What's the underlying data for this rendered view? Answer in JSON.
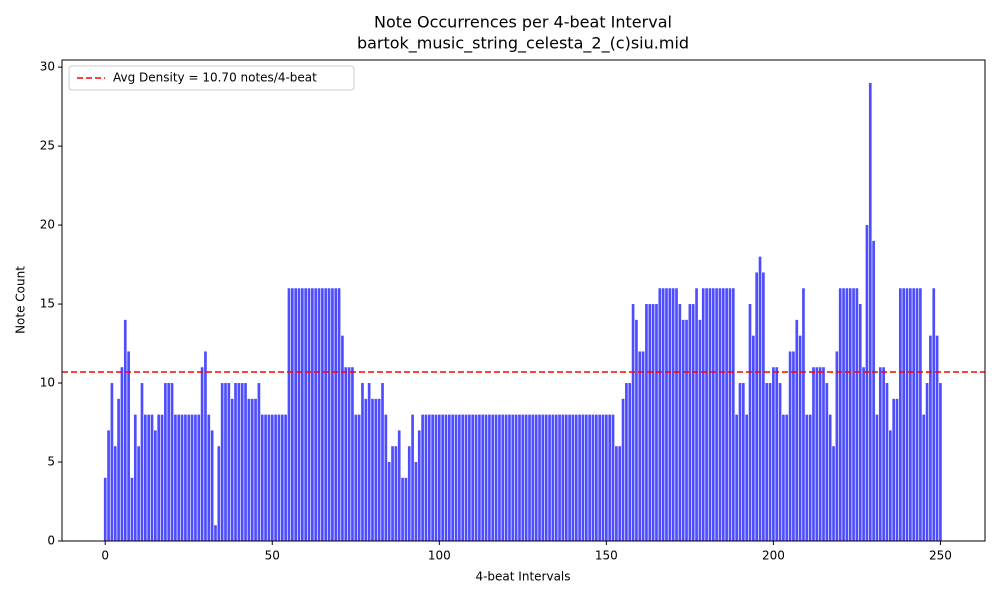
{
  "chart_data": {
    "type": "bar",
    "title": "Note Occurrences per 4-beat Interval",
    "subtitle": "bartok_music_string_celesta_2_(c)siu.mid",
    "x_label": "4-beat Intervals",
    "y_label": "Note Count",
    "color": "#4d4dff",
    "x": [
      0,
      1,
      2,
      3,
      4,
      5,
      6,
      7,
      8,
      9,
      10,
      11,
      12,
      13,
      14,
      15,
      16,
      17,
      18,
      19,
      20,
      21,
      22,
      23,
      24,
      25,
      26,
      27,
      28,
      29,
      30,
      31,
      32,
      33,
      34,
      35,
      36,
      37,
      38,
      39,
      40,
      41,
      42,
      43,
      44,
      45,
      46,
      47,
      48,
      49,
      50,
      51,
      52,
      53,
      54,
      55,
      56,
      57,
      58,
      59,
      60,
      61,
      62,
      63,
      64,
      65,
      66,
      67,
      68,
      69,
      70,
      71,
      72,
      73,
      74,
      75,
      76,
      77,
      78,
      79,
      80,
      81,
      82,
      83,
      84,
      85,
      86,
      87,
      88,
      89,
      90,
      91,
      92,
      93,
      94,
      95,
      96,
      97,
      98,
      99,
      100,
      101,
      102,
      103,
      104,
      105,
      106,
      107,
      108,
      109,
      110,
      111,
      112,
      113,
      114,
      115,
      116,
      117,
      118,
      119,
      120,
      121,
      122,
      123,
      124,
      125,
      126,
      127,
      128,
      129,
      130,
      131,
      132,
      133,
      134,
      135,
      136,
      137,
      138,
      139,
      140,
      141,
      142,
      143,
      144,
      145,
      146,
      147,
      148,
      149,
      150,
      151,
      152,
      153,
      154,
      155,
      156,
      157,
      158,
      159,
      160,
      161,
      162,
      163,
      164,
      165,
      166,
      167,
      168,
      169,
      170,
      171,
      172,
      173,
      174,
      175,
      176,
      177,
      178,
      179,
      180,
      181,
      182,
      183,
      184,
      185,
      186,
      187,
      188,
      189,
      190,
      191,
      192,
      193,
      194,
      195,
      196,
      197,
      198,
      199,
      200,
      201,
      202,
      203,
      204,
      205,
      206,
      207,
      208,
      209,
      210,
      211,
      212,
      213,
      214,
      215,
      216,
      217,
      218,
      219,
      220,
      221,
      222,
      223,
      224,
      225,
      226,
      227,
      228,
      229,
      230,
      231,
      232,
      233,
      234,
      235,
      236,
      237,
      238,
      239,
      240,
      241,
      242,
      243,
      244,
      245,
      246,
      247,
      248,
      249,
      250
    ],
    "values": [
      4,
      7,
      10,
      6,
      9,
      11,
      14,
      12,
      4,
      8,
      6,
      10,
      8,
      8,
      8,
      7,
      8,
      8,
      10,
      10,
      10,
      8,
      8,
      8,
      8,
      8,
      8,
      8,
      8,
      11,
      12,
      8,
      7,
      1,
      6,
      10,
      10,
      10,
      9,
      10,
      10,
      10,
      10,
      9,
      9,
      9,
      10,
      8,
      8,
      8,
      8,
      8,
      8,
      8,
      8,
      16,
      16,
      16,
      16,
      16,
      16,
      16,
      16,
      16,
      16,
      16,
      16,
      16,
      16,
      16,
      16,
      13,
      11,
      11,
      11,
      8,
      8,
      10,
      9,
      10,
      9,
      9,
      9,
      10,
      8,
      5,
      6,
      6,
      7,
      4,
      4,
      6,
      8,
      5,
      7,
      8,
      8,
      8,
      8,
      8,
      8,
      8,
      8,
      8,
      8,
      8,
      8,
      8,
      8,
      8,
      8,
      8,
      8,
      8,
      8,
      8,
      8,
      8,
      8,
      8,
      8,
      8,
      8,
      8,
      8,
      8,
      8,
      8,
      8,
      8,
      8,
      8,
      8,
      8,
      8,
      8,
      8,
      8,
      8,
      8,
      8,
      8,
      8,
      8,
      8,
      8,
      8,
      8,
      8,
      8,
      8,
      8,
      8,
      6,
      6,
      9,
      10,
      10,
      15,
      14,
      12,
      12,
      15,
      15,
      15,
      15,
      16,
      16,
      16,
      16,
      16,
      16,
      15,
      14,
      14,
      15,
      15,
      16,
      14,
      16,
      16,
      16,
      16,
      16,
      16,
      16,
      16,
      16,
      16,
      8,
      10,
      10,
      8,
      15,
      13,
      17,
      18,
      17,
      10,
      10,
      11,
      11,
      10,
      8,
      8,
      12,
      12,
      14,
      13,
      16,
      8,
      8,
      11,
      11,
      11,
      11,
      10,
      8,
      6,
      12,
      16,
      16,
      16,
      16,
      16,
      16,
      15,
      11,
      20,
      29,
      19,
      8,
      11,
      11,
      10,
      7,
      9,
      9,
      16,
      16,
      16,
      16,
      16,
      16,
      16,
      8,
      10,
      13,
      16,
      13,
      10
    ],
    "avg_line": {
      "value": 10.7,
      "label": "Avg Density = 10.70 notes/4-beat",
      "color": "#ff0000"
    },
    "legend": "upper left",
    "xlim": [
      -12.94,
      263.34
    ],
    "xticks": [
      0,
      50,
      100,
      150,
      200,
      250
    ],
    "ylim": [
      0,
      30.45
    ],
    "yticks": [
      0,
      5,
      10,
      15,
      20,
      25,
      30
    ]
  }
}
